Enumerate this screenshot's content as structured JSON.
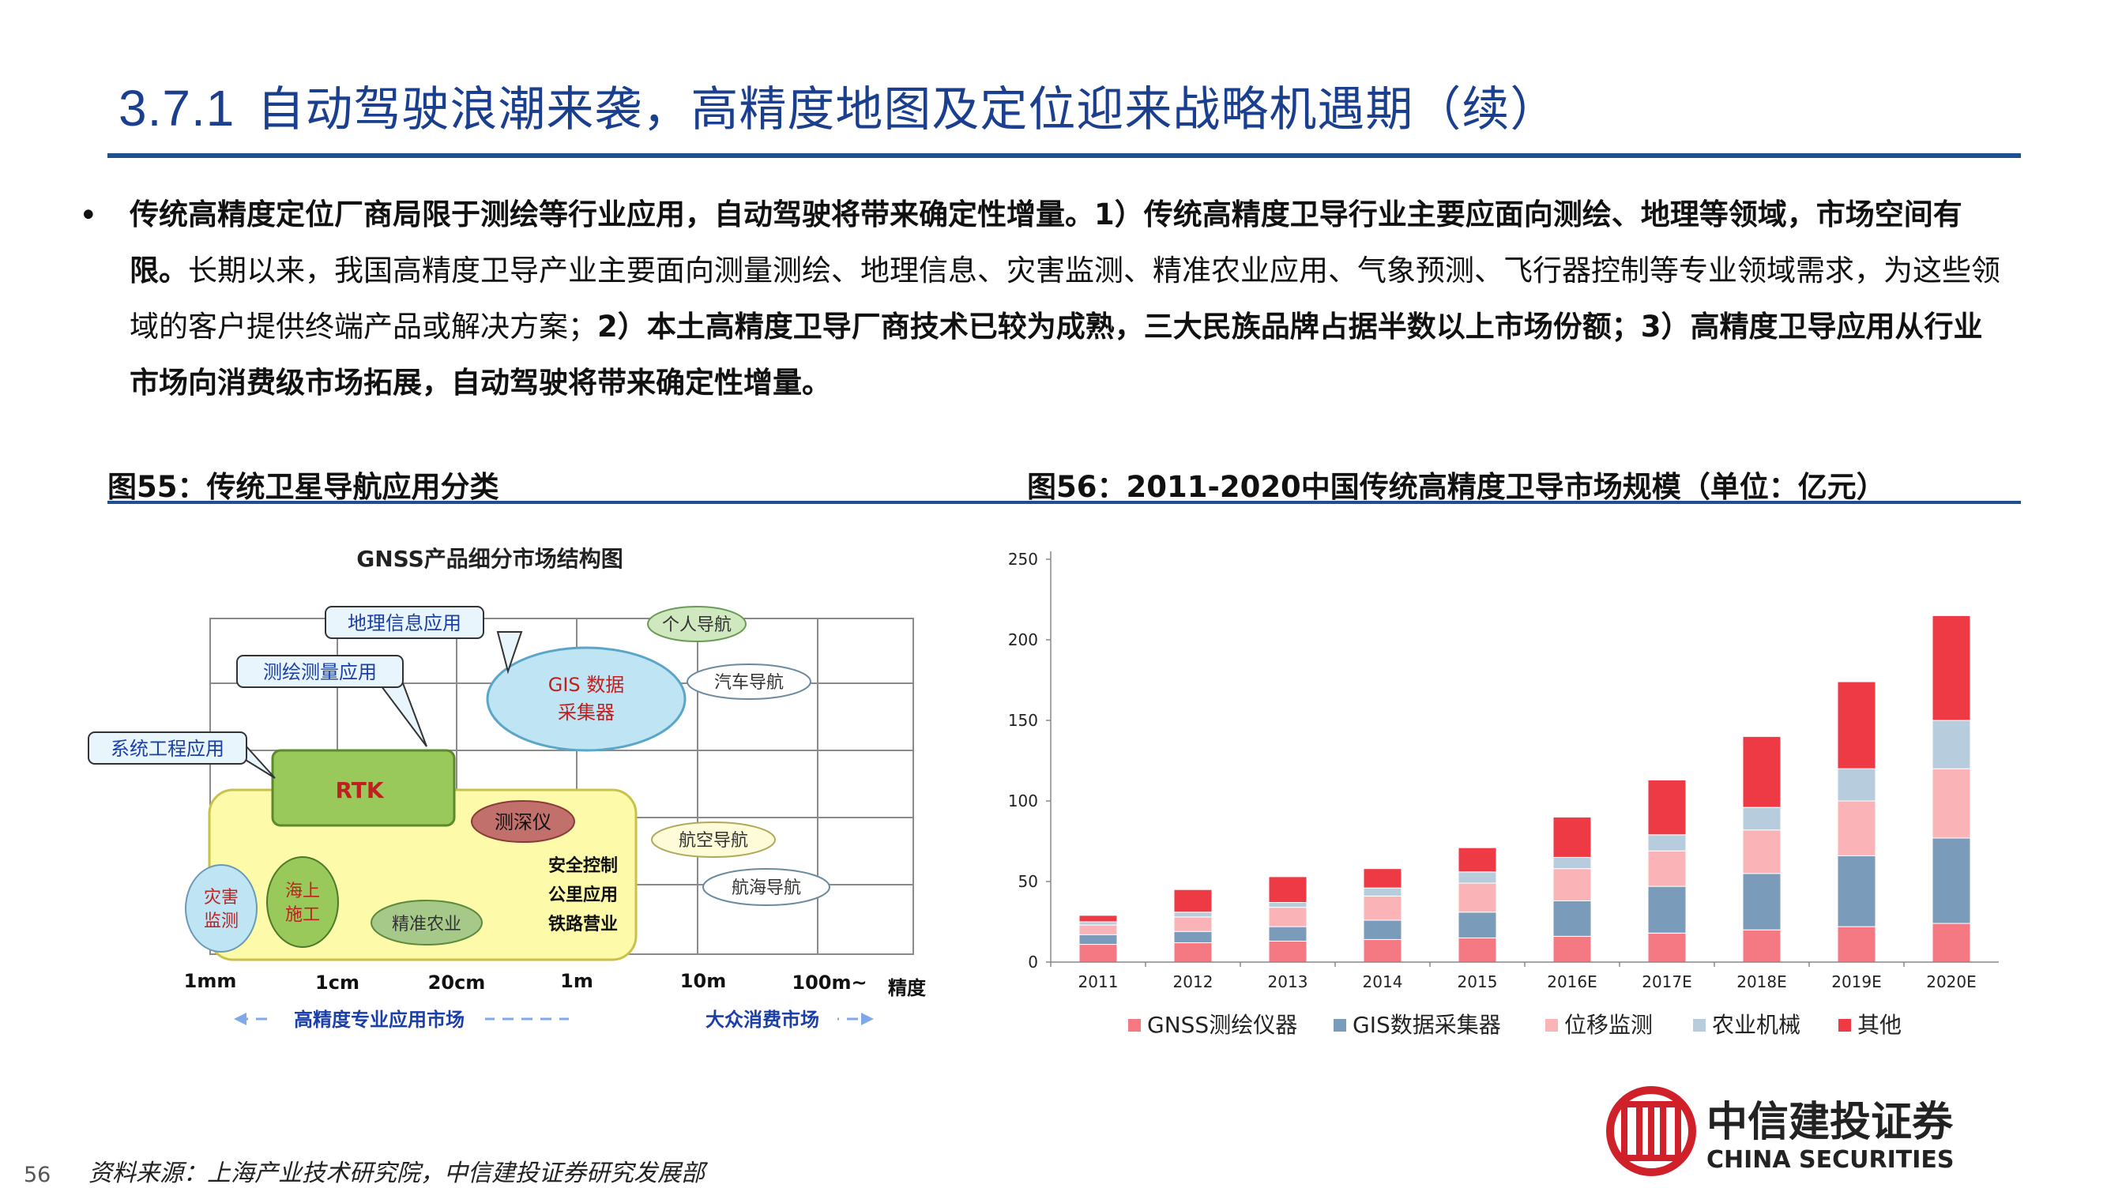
{
  "header": {
    "section_number": "3.7.1",
    "title": "自动驾驶浪潮来袭，高精度地图及定位迎来战略机遇期（续）"
  },
  "bullet": {
    "bold_1": "传统高精度定位厂商局限于测绘等行业应用，自动驾驶将带来确定性增量。1）传统高精度卫导行业主要应面向测绘、地理等领域，市场空间有限。",
    "normal_1": "长期以来，我国高精度卫导产业主要面向测量测绘、地理信息、灾害监测、精准农业应用、气象预测、飞行器控制等专业领域需求，为这些领域的客户提供终端产品或解决方案；",
    "bold_2": "2）本土高精度卫导厂商技术已较为成熟，三大民族品牌占据半数以上市场份额；3）高精度卫导应用从行业市场向消费级市场拓展，自动驾驶将带来确定性增量。"
  },
  "figure55": {
    "caption": "图55：传统卫星导航应用分类",
    "diagram_title": "GNSS产品细分市场结构图",
    "callouts": {
      "geo_info": "地理信息应用",
      "survey": "测绘测量应用",
      "system_eng": "系统工程应用",
      "personal_nav": "个人导航",
      "car_nav": "汽车导航",
      "air_nav": "航空导航",
      "sea_nav": "航海导航",
      "gis_line1": "GIS 数据",
      "gis_line2": "采集器",
      "rtk": "RTK",
      "sounder": "测深仪",
      "safety_line1": "安全控制",
      "safety_line2": "公里应用",
      "safety_line3": "铁路营业",
      "disaster_line1": "灾害",
      "disaster_line2": "监测",
      "offshore_line1": "海上",
      "offshore_line2": "施工",
      "agri": "精准农业"
    },
    "x_ticks": [
      "1mm",
      "1cm",
      "20cm",
      "1m",
      "10m",
      "100m~"
    ],
    "x_axis_label": "精度",
    "pro_market": "高精度专业应用市场",
    "consumer_market": "大众消费市场"
  },
  "figure56": {
    "caption": "图56：2011-2020中国传统高精度卫导市场规模（单位：亿元）"
  },
  "chart_data": {
    "type": "bar",
    "stacked": true,
    "title": "",
    "xlabel": "",
    "ylabel": "",
    "categories": [
      "2011",
      "2012",
      "2013",
      "2014",
      "2015",
      "2016E",
      "2017E",
      "2018E",
      "2019E",
      "2020E"
    ],
    "ylim": [
      0,
      250
    ],
    "yticks": [
      0,
      50,
      100,
      150,
      200,
      250
    ],
    "grid": false,
    "legend_position": "bottom",
    "series": [
      {
        "name": "GNSS测绘仪器",
        "color": "#f47983",
        "values": [
          11,
          12,
          13,
          14,
          15,
          16,
          18,
          20,
          22,
          24
        ]
      },
      {
        "name": "GIS数据采集器",
        "color": "#7a9cba",
        "values": [
          6,
          7,
          9,
          12,
          16,
          22,
          29,
          35,
          44,
          53
        ]
      },
      {
        "name": "位移监测",
        "color": "#fab3b7",
        "values": [
          6,
          9,
          12,
          15,
          18,
          20,
          22,
          27,
          34,
          43
        ]
      },
      {
        "name": "农业机械",
        "color": "#b7ccdd",
        "values": [
          2,
          3,
          3,
          5,
          7,
          7,
          10,
          14,
          20,
          30
        ]
      },
      {
        "name": "其他",
        "color": "#ee3a44",
        "values": [
          4,
          14,
          16,
          12,
          15,
          25,
          34,
          44,
          54,
          65
        ]
      }
    ]
  },
  "footer": {
    "source": "资料来源：上海产业技术研究院，中信建投证券研究发展部",
    "page_number": "56",
    "logo_cn": "中信建投证券",
    "logo_en": "CHINA SECURITIES"
  }
}
